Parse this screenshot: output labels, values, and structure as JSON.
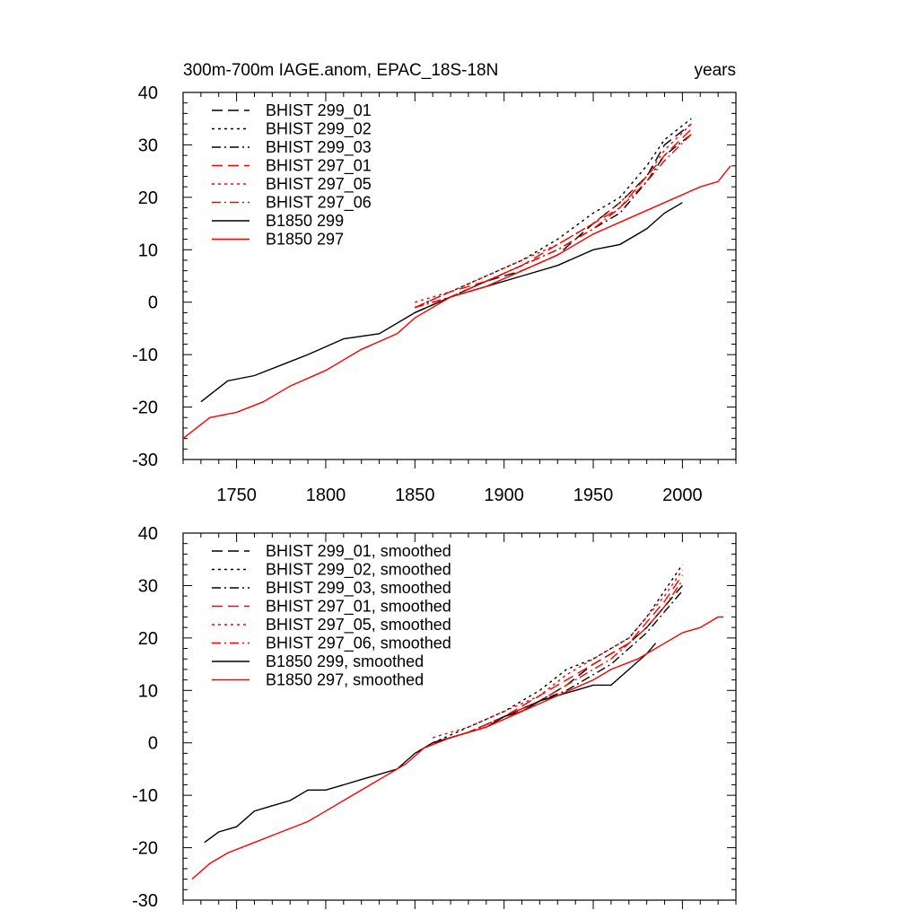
{
  "chart_data": [
    {
      "type": "line",
      "title": "300m-700m IAGE.anom, EPAC_18S-18N",
      "title_right": "years",
      "xlim": [
        1720,
        2030
      ],
      "ylim": [
        -30,
        40
      ],
      "x_ticks": [
        1750,
        1800,
        1850,
        1900,
        1950,
        2000
      ],
      "y_ticks": [
        40,
        30,
        20,
        10,
        0,
        -10,
        -20,
        -30
      ],
      "show_x_tick_labels": true,
      "legend_position": "top-left",
      "series": [
        {
          "name": "BHIST 299_01",
          "color": "#000000",
          "dash": "long-dash",
          "points": [
            [
              1850,
              -2
            ],
            [
              1870,
              1
            ],
            [
              1890,
              4
            ],
            [
              1910,
              6
            ],
            [
              1930,
              9
            ],
            [
              1950,
              15
            ],
            [
              1965,
              19
            ],
            [
              1980,
              24
            ],
            [
              1990,
              30
            ],
            [
              2005,
              34
            ]
          ]
        },
        {
          "name": "BHIST 299_02",
          "color": "#000000",
          "dash": "dot",
          "points": [
            [
              1850,
              -1
            ],
            [
              1870,
              2
            ],
            [
              1890,
              5
            ],
            [
              1910,
              8
            ],
            [
              1930,
              12
            ],
            [
              1950,
              17
            ],
            [
              1965,
              20
            ],
            [
              1980,
              26
            ],
            [
              1990,
              31
            ],
            [
              2005,
              35
            ]
          ]
        },
        {
          "name": "BHIST 299_03",
          "color": "#000000",
          "dash": "dash-dot",
          "points": [
            [
              1850,
              -1
            ],
            [
              1870,
              1
            ],
            [
              1890,
              4
            ],
            [
              1910,
              7
            ],
            [
              1930,
              10
            ],
            [
              1950,
              14
            ],
            [
              1965,
              17
            ],
            [
              1980,
              23
            ],
            [
              1990,
              28
            ],
            [
              2005,
              32
            ]
          ]
        },
        {
          "name": "BHIST 297_01",
          "color": "#ff0000",
          "dash": "long-dash",
          "points": [
            [
              1850,
              -1
            ],
            [
              1870,
              2
            ],
            [
              1890,
              4
            ],
            [
              1910,
              7
            ],
            [
              1930,
              11
            ],
            [
              1950,
              15
            ],
            [
              1965,
              18
            ],
            [
              1980,
              24
            ],
            [
              1990,
              28
            ],
            [
              2005,
              33
            ]
          ]
        },
        {
          "name": "BHIST 297_05",
          "color": "#ff0000",
          "dash": "dot",
          "points": [
            [
              1850,
              0
            ],
            [
              1870,
              2
            ],
            [
              1890,
              5
            ],
            [
              1910,
              8
            ],
            [
              1930,
              11
            ],
            [
              1950,
              15
            ],
            [
              1965,
              19
            ],
            [
              1980,
              24
            ],
            [
              1990,
              29
            ],
            [
              2005,
              34
            ]
          ]
        },
        {
          "name": "BHIST 297_06",
          "color": "#ff0000",
          "dash": "dash-dot",
          "points": [
            [
              1850,
              -1
            ],
            [
              1870,
              1
            ],
            [
              1890,
              4
            ],
            [
              1910,
              7
            ],
            [
              1930,
              10
            ],
            [
              1950,
              14
            ],
            [
              1965,
              18
            ],
            [
              1980,
              23
            ],
            [
              1990,
              27
            ],
            [
              2005,
              32
            ]
          ]
        },
        {
          "name": "B1850 299",
          "color": "#000000",
          "dash": "solid",
          "points": [
            [
              1730,
              -19
            ],
            [
              1745,
              -15
            ],
            [
              1760,
              -14
            ],
            [
              1775,
              -12
            ],
            [
              1790,
              -10
            ],
            [
              1810,
              -7
            ],
            [
              1830,
              -6
            ],
            [
              1850,
              -2
            ],
            [
              1870,
              1
            ],
            [
              1890,
              3
            ],
            [
              1910,
              5
            ],
            [
              1930,
              7
            ],
            [
              1950,
              10
            ],
            [
              1965,
              11
            ],
            [
              1980,
              14
            ],
            [
              1990,
              17
            ],
            [
              2000,
              19
            ]
          ]
        },
        {
          "name": "B1850 297",
          "color": "#ff0000",
          "dash": "solid",
          "points": [
            [
              1720,
              -26
            ],
            [
              1735,
              -22
            ],
            [
              1750,
              -21
            ],
            [
              1765,
              -19
            ],
            [
              1780,
              -16
            ],
            [
              1800,
              -13
            ],
            [
              1820,
              -9
            ],
            [
              1840,
              -6
            ],
            [
              1850,
              -3
            ],
            [
              1870,
              1
            ],
            [
              1890,
              3
            ],
            [
              1910,
              6
            ],
            [
              1930,
              9
            ],
            [
              1950,
              13
            ],
            [
              1970,
              16
            ],
            [
              1990,
              19
            ],
            [
              2010,
              22
            ],
            [
              2020,
              23
            ],
            [
              2027,
              26
            ]
          ]
        }
      ]
    },
    {
      "type": "line",
      "title": "",
      "xlim": [
        1720,
        2030
      ],
      "ylim": [
        -30,
        40
      ],
      "x_ticks": [
        1750,
        1800,
        1850,
        1900,
        1950,
        2000
      ],
      "y_ticks": [
        40,
        30,
        20,
        10,
        0,
        -10,
        -20,
        -30
      ],
      "show_x_tick_labels": false,
      "legend_position": "top-left",
      "series": [
        {
          "name": "BHIST 299_01, smoothed",
          "color": "#000000",
          "dash": "long-dash",
          "points": [
            [
              1860,
              0
            ],
            [
              1880,
              2
            ],
            [
              1900,
              5
            ],
            [
              1920,
              8
            ],
            [
              1935,
              11
            ],
            [
              1950,
              15
            ],
            [
              1960,
              17
            ],
            [
              1970,
              19
            ],
            [
              1980,
              22
            ],
            [
              1990,
              26
            ],
            [
              2000,
              30
            ]
          ]
        },
        {
          "name": "BHIST 299_02, smoothed",
          "color": "#000000",
          "dash": "dot",
          "points": [
            [
              1860,
              0
            ],
            [
              1880,
              3
            ],
            [
              1900,
              6
            ],
            [
              1920,
              10
            ],
            [
              1935,
              14
            ],
            [
              1950,
              16
            ],
            [
              1960,
              18
            ],
            [
              1970,
              20
            ],
            [
              1980,
              24
            ],
            [
              1990,
              29
            ],
            [
              2000,
              34
            ]
          ]
        },
        {
          "name": "BHIST 299_03, smoothed",
          "color": "#000000",
          "dash": "dash-dot",
          "points": [
            [
              1860,
              0
            ],
            [
              1880,
              2
            ],
            [
              1900,
              5
            ],
            [
              1920,
              8
            ],
            [
              1935,
              10
            ],
            [
              1950,
              13
            ],
            [
              1960,
              15
            ],
            [
              1970,
              18
            ],
            [
              1980,
              21
            ],
            [
              1990,
              25
            ],
            [
              2000,
              29
            ]
          ]
        },
        {
          "name": "BHIST 297_01, smoothed",
          "color": "#ff0000",
          "dash": "long-dash",
          "points": [
            [
              1860,
              0
            ],
            [
              1880,
              2
            ],
            [
              1900,
              5
            ],
            [
              1920,
              9
            ],
            [
              1935,
              12
            ],
            [
              1950,
              15
            ],
            [
              1960,
              17
            ],
            [
              1970,
              19
            ],
            [
              1980,
              23
            ],
            [
              1990,
              27
            ],
            [
              2000,
              32
            ]
          ]
        },
        {
          "name": "BHIST 297_05, smoothed",
          "color": "#ff0000",
          "dash": "dot",
          "points": [
            [
              1860,
              1
            ],
            [
              1880,
              3
            ],
            [
              1900,
              6
            ],
            [
              1920,
              9
            ],
            [
              1935,
              13
            ],
            [
              1950,
              16
            ],
            [
              1960,
              18
            ],
            [
              1970,
              20
            ],
            [
              1980,
              24
            ],
            [
              1990,
              28
            ],
            [
              2000,
              33
            ]
          ]
        },
        {
          "name": "BHIST 297_06, smoothed",
          "color": "#ff0000",
          "dash": "dash-dot",
          "points": [
            [
              1860,
              0
            ],
            [
              1880,
              2
            ],
            [
              1900,
              5
            ],
            [
              1920,
              8
            ],
            [
              1935,
              11
            ],
            [
              1950,
              14
            ],
            [
              1960,
              16
            ],
            [
              1970,
              19
            ],
            [
              1980,
              22
            ],
            [
              1990,
              26
            ],
            [
              2000,
              31
            ]
          ]
        },
        {
          "name": "B1850 299, smoothed",
          "color": "#000000",
          "dash": "solid",
          "points": [
            [
              1732,
              -19
            ],
            [
              1740,
              -17
            ],
            [
              1750,
              -16
            ],
            [
              1760,
              -13
            ],
            [
              1770,
              -12
            ],
            [
              1780,
              -11
            ],
            [
              1790,
              -9
            ],
            [
              1800,
              -9
            ],
            [
              1810,
              -8
            ],
            [
              1820,
              -7
            ],
            [
              1830,
              -6
            ],
            [
              1840,
              -5
            ],
            [
              1850,
              -2
            ],
            [
              1860,
              0
            ],
            [
              1870,
              1
            ],
            [
              1880,
              2
            ],
            [
              1890,
              3
            ],
            [
              1900,
              5
            ],
            [
              1910,
              6
            ],
            [
              1920,
              8
            ],
            [
              1930,
              9
            ],
            [
              1940,
              10
            ],
            [
              1950,
              11
            ],
            [
              1960,
              11
            ],
            [
              1970,
              14
            ],
            [
              1980,
              17
            ],
            [
              1985,
              19
            ]
          ]
        },
        {
          "name": "B1850 297, smoothed",
          "color": "#ff0000",
          "dash": "solid",
          "points": [
            [
              1725,
              -26
            ],
            [
              1735,
              -23
            ],
            [
              1745,
              -21
            ],
            [
              1760,
              -19
            ],
            [
              1775,
              -17
            ],
            [
              1790,
              -15
            ],
            [
              1800,
              -13
            ],
            [
              1815,
              -10
            ],
            [
              1825,
              -8
            ],
            [
              1835,
              -6
            ],
            [
              1845,
              -4
            ],
            [
              1855,
              -1
            ],
            [
              1870,
              1
            ],
            [
              1890,
              3
            ],
            [
              1910,
              6
            ],
            [
              1930,
              9
            ],
            [
              1950,
              12
            ],
            [
              1960,
              14
            ],
            [
              1975,
              16
            ],
            [
              1990,
              19
            ],
            [
              2000,
              21
            ],
            [
              2010,
              22
            ],
            [
              2020,
              24
            ],
            [
              2023,
              24
            ]
          ]
        }
      ]
    }
  ]
}
